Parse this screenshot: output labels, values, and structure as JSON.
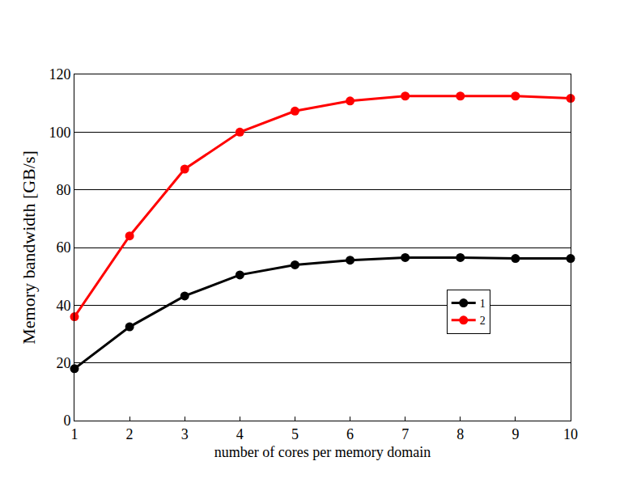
{
  "chart_data": {
    "type": "line",
    "x_label": "number of cores per memory domain",
    "y_label": "Memory bandwidth [GB/s]",
    "x": [
      1,
      2,
      3,
      4,
      5,
      6,
      7,
      8,
      9,
      10
    ],
    "series": [
      {
        "name": "1",
        "color": "#000000",
        "marker": "circle",
        "values": [
          18,
          32.5,
          43.2,
          50.5,
          54,
          55.6,
          56.5,
          56.5,
          56.2,
          56.2
        ]
      },
      {
        "name": "2",
        "color": "#ff0000",
        "marker": "circle",
        "values": [
          36,
          64,
          87.2,
          100,
          107.3,
          110.8,
          112.5,
          112.5,
          112.5,
          111.7
        ]
      }
    ],
    "xlim": [
      1,
      10
    ],
    "xticks": [
      1,
      2,
      3,
      4,
      5,
      6,
      7,
      8,
      9,
      10
    ],
    "ylim": [
      0,
      120
    ],
    "yticks": [
      0,
      20,
      40,
      60,
      80,
      100,
      120
    ],
    "grid": true,
    "legend": "right"
  }
}
